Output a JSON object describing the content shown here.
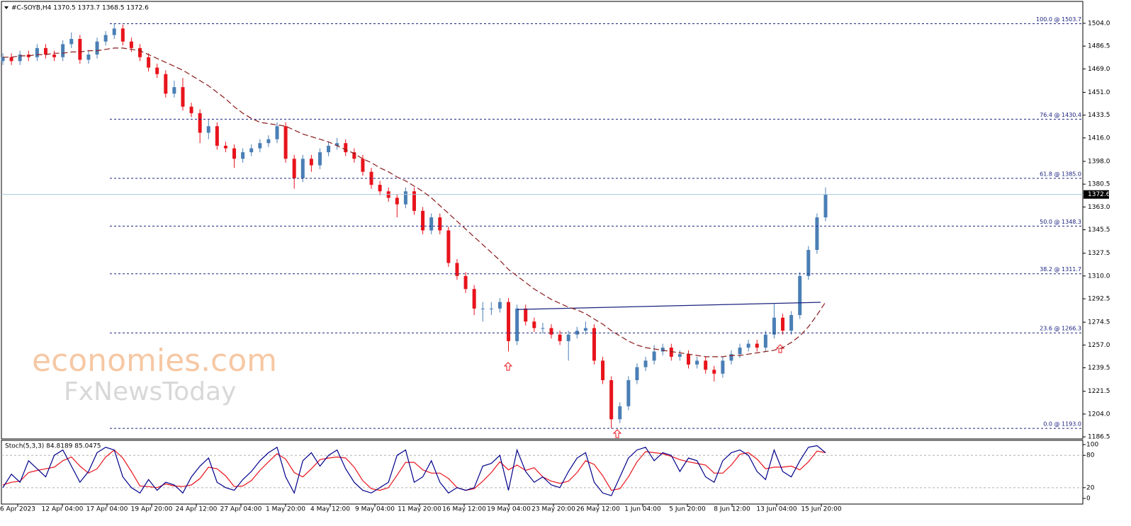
{
  "header": "#C-SOYB,H4 1370.5 1373.7 1368.5 1372.6",
  "watermark": [
    "economies.com",
    "FxNewsToday"
  ],
  "chart_data": [
    {
      "type": "candlestick",
      "categories": [
        "6 Apr 2023",
        "12 Apr 04:00",
        "17 Apr 04:00",
        "19 Apr 20:00",
        "24 Apr 12:00",
        "27 Apr 04:00",
        "1 May 20:00",
        "4 May 12:00",
        "9 May 04:00",
        "11 May 20:00",
        "16 May 12:00",
        "19 May 04:00",
        "23 May 20:00",
        "26 May 12:00",
        "1 Jun 04:00",
        "5 Jun 20:00",
        "8 Jun 12:00",
        "13 Jun 04:00",
        "15 Jun 20:00"
      ],
      "ylim": [
        1184.9,
        1521.9
      ],
      "yticks": [
        {
          "value": 1504.0,
          "label": "1504.0"
        },
        1486.5,
        {
          "value": 1469.0,
          "label": "1469.0"
        },
        {
          "value": 1451.0,
          "label": "1451.0"
        },
        1433.5,
        {
          "value": 1416.0,
          "label": "1416.0"
        },
        {
          "value": 1398.0,
          "label": "1398.0"
        },
        1380.5,
        {
          "value": 1363.0,
          "label": "1363.0"
        },
        1345.5,
        1327.5,
        {
          "value": 1310.0,
          "label": "1310.0"
        },
        1292.5,
        1274.5,
        {
          "value": 1257.0,
          "label": "1257.0"
        },
        1239.5,
        1221.5,
        {
          "value": 1204.0,
          "label": "1204.0"
        },
        1186.5
      ],
      "up_color": "#4a7fb5",
      "down_color": "#e8141c",
      "ma_color": "#8b1a1a",
      "level_color": "#1a237e",
      "last_price": 1372.6,
      "fib_levels": [
        {
          "label": "100.0 @ 1503.7",
          "value": 1503.7
        },
        {
          "label": "76.4 @ 1430.4",
          "value": 1430.4
        },
        {
          "label": "61.8 @ 1385.0",
          "value": 1385.0
        },
        {
          "label": "50.0 @ 1348.3",
          "value": 1348.3
        },
        {
          "label": "38.2 @ 1311.7",
          "value": 1311.7
        },
        {
          "label": "23.6 @ 1266.3",
          "value": 1266.3
        },
        {
          "label": "0.0 @ 1193.0",
          "value": 1193.0
        }
      ],
      "trendline": [
        1284.3,
        1289.8
      ],
      "ohlc": [
        [
          1475,
          1481,
          1472,
          1478
        ],
        [
          1478,
          1481,
          1472,
          1475
        ],
        [
          1475,
          1483,
          1472,
          1480
        ],
        [
          1480,
          1483,
          1475,
          1478
        ],
        [
          1478,
          1488,
          1475,
          1485
        ],
        [
          1485,
          1488,
          1477,
          1480
        ],
        [
          1480,
          1483,
          1475,
          1478
        ],
        [
          1478,
          1491,
          1475,
          1488
        ],
        [
          1488,
          1497,
          1485,
          1492
        ],
        [
          1492,
          1495,
          1473,
          1476
        ],
        [
          1476,
          1483,
          1473,
          1480
        ],
        [
          1480,
          1493,
          1477,
          1490
        ],
        [
          1490,
          1498,
          1487,
          1495
        ],
        [
          1495,
          1504,
          1492,
          1500
        ],
        [
          1500,
          1503,
          1487,
          1490
        ],
        [
          1490,
          1493,
          1482,
          1485
        ],
        [
          1485,
          1488,
          1475,
          1478
        ],
        [
          1478,
          1481,
          1467,
          1470
        ],
        [
          1470,
          1473,
          1462,
          1465
        ],
        [
          1465,
          1468,
          1447,
          1450
        ],
        [
          1450,
          1460,
          1447,
          1455
        ],
        [
          1455,
          1462,
          1437,
          1440
        ],
        [
          1440,
          1443,
          1432,
          1435
        ],
        [
          1435,
          1438,
          1412,
          1420
        ],
        [
          1420,
          1430,
          1415,
          1425
        ],
        [
          1425,
          1428,
          1407,
          1410
        ],
        [
          1410,
          1413,
          1405,
          1408
        ],
        [
          1408,
          1411,
          1393,
          1400
        ],
        [
          1400,
          1408,
          1397,
          1405
        ],
        [
          1405,
          1411,
          1402,
          1408
        ],
        [
          1408,
          1415,
          1405,
          1412
        ],
        [
          1412,
          1418,
          1409,
          1415
        ],
        [
          1415,
          1428,
          1412,
          1425
        ],
        [
          1425,
          1428,
          1397,
          1400
        ],
        [
          1400,
          1403,
          1377,
          1385
        ],
        [
          1385,
          1403,
          1382,
          1400
        ],
        [
          1400,
          1403,
          1390,
          1395
        ],
        [
          1395,
          1408,
          1392,
          1405
        ],
        [
          1405,
          1413,
          1402,
          1410
        ],
        [
          1410,
          1416,
          1407,
          1412
        ],
        [
          1412,
          1415,
          1402,
          1405
        ],
        [
          1405,
          1408,
          1397,
          1400
        ],
        [
          1400,
          1403,
          1387,
          1390
        ],
        [
          1390,
          1393,
          1377,
          1380
        ],
        [
          1380,
          1383,
          1372,
          1375
        ],
        [
          1375,
          1378,
          1367,
          1370
        ],
        [
          1370,
          1373,
          1355,
          1365
        ],
        [
          1365,
          1378,
          1362,
          1375
        ],
        [
          1375,
          1378,
          1357,
          1360
        ],
        [
          1360,
          1363,
          1342,
          1345
        ],
        [
          1345,
          1358,
          1342,
          1355
        ],
        [
          1355,
          1358,
          1342,
          1345
        ],
        [
          1345,
          1348,
          1317,
          1320
        ],
        [
          1320,
          1323,
          1307,
          1310
        ],
        [
          1310,
          1313,
          1297,
          1300
        ],
        [
          1300,
          1303,
          1280,
          1285
        ],
        [
          1285,
          1290,
          1275,
          1285
        ],
        [
          1285,
          1290,
          1280,
          1285
        ],
        [
          1285,
          1293,
          1282,
          1290
        ],
        [
          1290,
          1293,
          1252,
          1260
        ],
        [
          1260,
          1288,
          1257,
          1285
        ],
        [
          1285,
          1288,
          1272,
          1275
        ],
        [
          1275,
          1278,
          1267,
          1270
        ],
        [
          1270,
          1274,
          1266,
          1270
        ],
        [
          1270,
          1273,
          1262,
          1265
        ],
        [
          1265,
          1268,
          1257,
          1260
        ],
        [
          1260,
          1268,
          1245,
          1265
        ],
        [
          1265,
          1271,
          1262,
          1268
        ],
        [
          1268,
          1275,
          1265,
          1270
        ],
        [
          1270,
          1273,
          1242,
          1245
        ],
        [
          1245,
          1248,
          1227,
          1230
        ],
        [
          1230,
          1233,
          1193,
          1200
        ],
        [
          1200,
          1213,
          1197,
          1210
        ],
        [
          1210,
          1233,
          1207,
          1230
        ],
        [
          1230,
          1243,
          1227,
          1240
        ],
        [
          1240,
          1248,
          1237,
          1245
        ],
        [
          1245,
          1257,
          1242,
          1252
        ],
        [
          1252,
          1258,
          1249,
          1255
        ],
        [
          1255,
          1258,
          1245,
          1248
        ],
        [
          1248,
          1253,
          1245,
          1250
        ],
        [
          1250,
          1253,
          1239,
          1242
        ],
        [
          1242,
          1248,
          1239,
          1245
        ],
        [
          1245,
          1248,
          1235,
          1238
        ],
        [
          1238,
          1241,
          1229,
          1235
        ],
        [
          1235,
          1248,
          1232,
          1245
        ],
        [
          1245,
          1253,
          1242,
          1250
        ],
        [
          1250,
          1258,
          1247,
          1255
        ],
        [
          1255,
          1261,
          1252,
          1258
        ],
        [
          1258,
          1261,
          1252,
          1255
        ],
        [
          1255,
          1268,
          1252,
          1265
        ],
        [
          1265,
          1289,
          1262,
          1278
        ],
        [
          1278,
          1281,
          1265,
          1268
        ],
        [
          1268,
          1283,
          1265,
          1280
        ],
        [
          1280,
          1313,
          1277,
          1310
        ],
        [
          1310,
          1333,
          1307,
          1330
        ],
        [
          1330,
          1358,
          1327,
          1355
        ],
        [
          1355,
          1378,
          1352,
          1372.6
        ]
      ],
      "ma": [
        1478,
        1478,
        1479,
        1479,
        1480,
        1480,
        1481,
        1481,
        1482,
        1482,
        1483,
        1483,
        1484,
        1485,
        1485,
        1484,
        1483,
        1480,
        1477,
        1474,
        1471,
        1468,
        1464,
        1460,
        1456,
        1451,
        1446,
        1440,
        1435,
        1431,
        1428,
        1427,
        1426,
        1425,
        1422,
        1419,
        1417,
        1415,
        1413,
        1410,
        1407,
        1404,
        1400,
        1397,
        1393,
        1390,
        1386,
        1383,
        1379,
        1375,
        1370,
        1364,
        1358,
        1352,
        1346,
        1340,
        1334,
        1328,
        1322,
        1315,
        1310,
        1305,
        1300,
        1296,
        1292,
        1289,
        1286,
        1284,
        1281,
        1277,
        1273,
        1268,
        1264,
        1260,
        1257,
        1255,
        1254,
        1253,
        1252,
        1251,
        1250,
        1249,
        1248,
        1248,
        1248,
        1249,
        1249,
        1250,
        1251,
        1252,
        1253,
        1255,
        1259,
        1264,
        1271,
        1280,
        1290
      ]
    },
    {
      "type": "stochastic",
      "title": "Stoch(5,3,3) 84.8189 85.0475",
      "ylim": [
        -10.5,
        107.9
      ],
      "yticks": [
        100,
        80,
        20,
        0
      ],
      "levels": [
        80,
        20
      ],
      "series": [
        {
          "color": "#00008b",
          "values": [
            20,
            45,
            30,
            70,
            55,
            40,
            80,
            90,
            60,
            30,
            50,
            85,
            95,
            90,
            40,
            20,
            10,
            35,
            15,
            30,
            25,
            10,
            40,
            60,
            75,
            30,
            20,
            15,
            35,
            50,
            70,
            85,
            95,
            40,
            10,
            70,
            85,
            60,
            80,
            90,
            55,
            30,
            15,
            10,
            20,
            30,
            80,
            90,
            30,
            40,
            70,
            30,
            10,
            20,
            15,
            20,
            60,
            65,
            80,
            15,
            90,
            50,
            30,
            40,
            25,
            20,
            50,
            75,
            85,
            30,
            10,
            5,
            40,
            75,
            90,
            95,
            70,
            85,
            80,
            50,
            75,
            70,
            40,
            30,
            70,
            85,
            90,
            80,
            50,
            35,
            90,
            50,
            40,
            70,
            95,
            98,
            84.8189
          ]
        },
        {
          "color": "#e8141c",
          "values": [
            25,
            30,
            32,
            48,
            52,
            55,
            58,
            70,
            77,
            60,
            47,
            55,
            77,
            90,
            75,
            50,
            23,
            22,
            20,
            27,
            23,
            22,
            25,
            37,
            58,
            55,
            42,
            22,
            23,
            33,
            52,
            68,
            83,
            73,
            48,
            40,
            55,
            72,
            75,
            77,
            75,
            58,
            33,
            18,
            15,
            20,
            43,
            67,
            67,
            53,
            47,
            47,
            37,
            20,
            15,
            18,
            32,
            48,
            68,
            53,
            62,
            52,
            57,
            40,
            32,
            28,
            32,
            48,
            70,
            63,
            42,
            15,
            18,
            40,
            68,
            87,
            85,
            83,
            78,
            72,
            68,
            65,
            62,
            47,
            47,
            62,
            82,
            85,
            73,
            55,
            58,
            58,
            60,
            53,
            68,
            88,
            85.0475
          ]
        }
      ]
    }
  ]
}
